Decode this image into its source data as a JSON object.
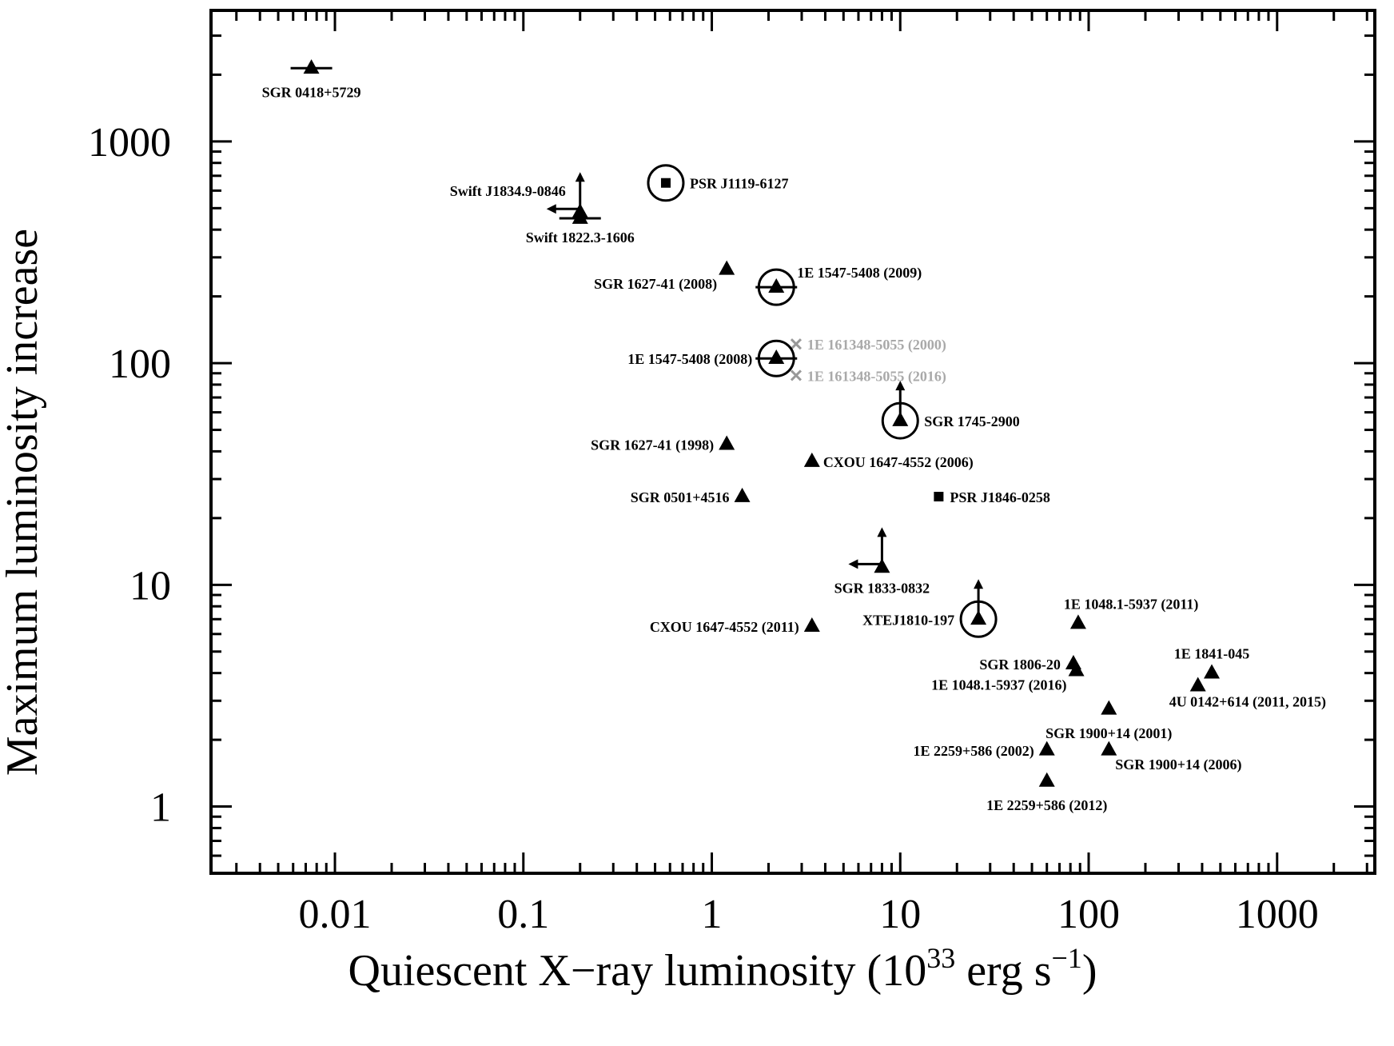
{
  "chart_data": {
    "type": "scatter",
    "title": "",
    "xlabel": "Quiescent X−ray luminosity (10",
    "xlabel_exp1": "33",
    "xlabel_mid": " erg s",
    "xlabel_exp2": "−1",
    "xlabel_end": ")",
    "ylabel": "Maximum luminosity increase",
    "x_scale": "log",
    "y_scale": "log",
    "xlim": [
      0.0022,
      3300
    ],
    "ylim": [
      0.5,
      3900
    ],
    "x_ticks": [
      {
        "value": 0.01,
        "label": "0.01"
      },
      {
        "value": 0.1,
        "label": "0.1"
      },
      {
        "value": 1,
        "label": "1"
      },
      {
        "value": 10,
        "label": "10"
      },
      {
        "value": 100,
        "label": "100"
      },
      {
        "value": 1000,
        "label": "1000"
      }
    ],
    "y_ticks": [
      {
        "value": 1,
        "label": "1"
      },
      {
        "value": 10,
        "label": "10"
      },
      {
        "value": 100,
        "label": "100"
      },
      {
        "value": 1000,
        "label": "1000"
      }
    ],
    "points": [
      {
        "name": "SGR 0418+5729",
        "x": 0.0075,
        "y": 2140,
        "marker": "triangle",
        "xerr": true,
        "label_pos": "below"
      },
      {
        "name": "PSR J1119-6127",
        "x": 0.57,
        "y": 650,
        "marker": "square",
        "circled": true,
        "label_pos": "right"
      },
      {
        "name": "Swift J1834.9-0846",
        "x": 0.2,
        "y": 480,
        "marker": "triangle",
        "upper_arrow": true,
        "left_arrow": true,
        "label_pos": "left"
      },
      {
        "name": "Swift 1822.3-1606",
        "x": 0.2,
        "y": 450,
        "marker": "triangle",
        "xerr": true,
        "label_pos": "below"
      },
      {
        "name": "SGR 1627-41 (2008)",
        "x": 1.2,
        "y": 265,
        "marker": "triangle",
        "label_pos": "left-below"
      },
      {
        "name": "1E 1547-5408 (2009)",
        "x": 2.2,
        "y": 220,
        "marker": "triangle",
        "circled": true,
        "xerr": true,
        "label_pos": "right-above"
      },
      {
        "name": "1E 161348-5055 (2000)",
        "x": 2.8,
        "y": 122,
        "marker": "cross",
        "grey": true,
        "label_pos": "right"
      },
      {
        "name": "1E 1547-5408 (2008)",
        "x": 2.2,
        "y": 105,
        "marker": "triangle",
        "circled": true,
        "xerr": true,
        "label_pos": "left"
      },
      {
        "name": "1E 161348-5055 (2016)",
        "x": 2.8,
        "y": 88,
        "marker": "cross",
        "grey": true,
        "label_pos": "right"
      },
      {
        "name": "SGR 1745-2900",
        "x": 10,
        "y": 55,
        "marker": "triangle",
        "circled": true,
        "upper_arrow": true,
        "label_pos": "right"
      },
      {
        "name": "SGR 1627-41 (1998)",
        "x": 1.2,
        "y": 43,
        "marker": "triangle",
        "label_pos": "left"
      },
      {
        "name": "CXOU 1647-4552 (2006)",
        "x": 3.4,
        "y": 36,
        "marker": "triangle",
        "label_pos": "right"
      },
      {
        "name": "SGR 0501+4516",
        "x": 1.45,
        "y": 25,
        "marker": "triangle",
        "label_pos": "left"
      },
      {
        "name": "PSR J1846-0258",
        "x": 16,
        "y": 25,
        "marker": "square",
        "label_pos": "right"
      },
      {
        "name": "SGR 1833-0832",
        "x": 8,
        "y": 12,
        "marker": "triangle",
        "upper_arrow": true,
        "left_arrow": true,
        "label_pos": "below"
      },
      {
        "name": "XTEJ1810-197",
        "x": 26,
        "y": 7,
        "marker": "triangle",
        "circled": true,
        "upper_arrow": true,
        "label_pos": "left"
      },
      {
        "name": "CXOU 1647-4552 (2011)",
        "x": 3.4,
        "y": 6.5,
        "marker": "triangle",
        "label_pos": "left"
      },
      {
        "name": "1E 1048.1-5937 (2011)",
        "x": 88,
        "y": 6.7,
        "marker": "triangle",
        "label_pos": "right-above"
      },
      {
        "name": "SGR 1806-20",
        "x": 83,
        "y": 4.4,
        "marker": "triangle",
        "label_pos": "left"
      },
      {
        "name": "1E 1048.1-5937 (2016)",
        "x": 86,
        "y": 4.1,
        "marker": "triangle",
        "label_pos": "left-below"
      },
      {
        "name": "1E 1841-045",
        "x": 450,
        "y": 4.0,
        "marker": "triangle",
        "label_pos": "above"
      },
      {
        "name": "4U 0142+614 (2011, 2015)",
        "x": 380,
        "y": 3.5,
        "marker": "triangle",
        "label_pos": "below-right"
      },
      {
        "name": "SGR 1900+14 (2001)",
        "x": 128,
        "y": 2.75,
        "marker": "triangle",
        "label_pos": "below"
      },
      {
        "name": "1E 2259+586 (2002)",
        "x": 60,
        "y": 1.8,
        "marker": "triangle",
        "label_pos": "left"
      },
      {
        "name": "SGR 1900+14 (2006)",
        "x": 128,
        "y": 1.8,
        "marker": "triangle",
        "label_pos": "below-right"
      },
      {
        "name": "1E 2259+586 (2012)",
        "x": 60,
        "y": 1.3,
        "marker": "triangle",
        "label_pos": "below"
      }
    ]
  }
}
